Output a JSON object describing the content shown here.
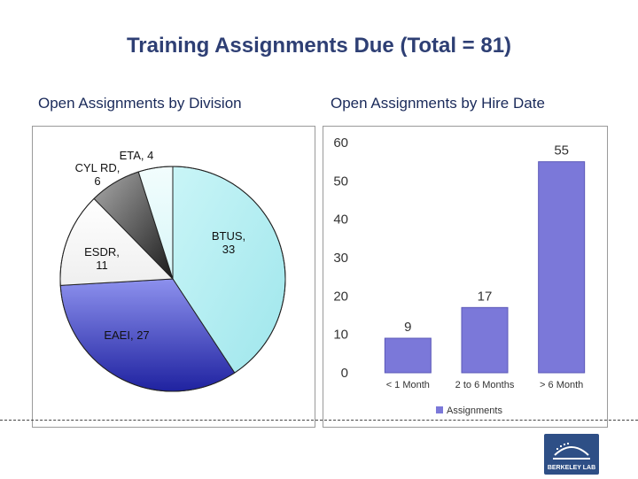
{
  "title": "Training Assignments Due (Total = 81)",
  "left_subtitle": "Open Assignments by Division",
  "right_subtitle": "Open Assignments by Hire Date",
  "logo_text": "BERKELEY LAB",
  "chart_data": [
    {
      "type": "pie",
      "title": "Open Assignments by Division",
      "labels": [
        "BTUS",
        "EAEI",
        "ESDR",
        "CYL RD",
        "ETA"
      ],
      "values": [
        33,
        27,
        11,
        6,
        4
      ],
      "slice_labels": [
        "BTUS, 33",
        "EAEI, 27",
        "ESDR, 11",
        "CYL RD, 6",
        "ETA, 4"
      ],
      "colors": [
        "#b8f0f3",
        "#5a5fd0",
        "#ffffff",
        "#555555",
        "#e8fbfc"
      ]
    },
    {
      "type": "bar",
      "title": "Open Assignments by Hire Date",
      "categories": [
        "< 1 Month",
        "2 to 6 Months",
        "> 6 Month"
      ],
      "series": [
        {
          "name": "Assignments",
          "values": [
            9,
            17,
            55
          ]
        }
      ],
      "ylim": [
        0,
        60
      ],
      "yticks": [
        0,
        10,
        20,
        30,
        40,
        50,
        60
      ],
      "bar_color": "#7b78d9",
      "legend": "bottom"
    }
  ]
}
